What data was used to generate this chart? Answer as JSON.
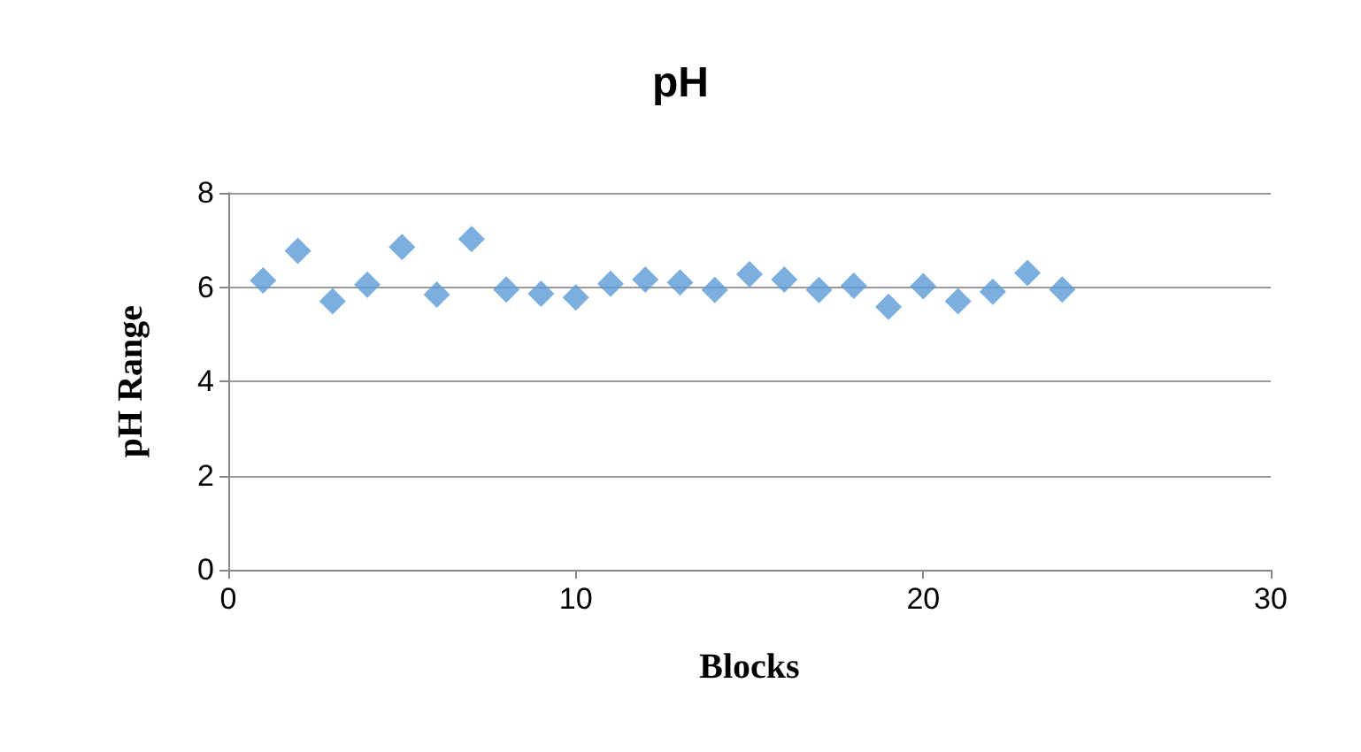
{
  "chart_data": {
    "type": "scatter",
    "title": "pH",
    "xlabel": "Blocks",
    "ylabel": "pH Range",
    "x": [
      1,
      2,
      3,
      4,
      5,
      6,
      7,
      8,
      9,
      10,
      11,
      12,
      13,
      14,
      15,
      16,
      17,
      18,
      19,
      20,
      21,
      22,
      23,
      24
    ],
    "series": [
      {
        "color": "#5b9bd5",
        "values": [
          6.14,
          6.77,
          5.7,
          6.05,
          6.85,
          5.84,
          7.02,
          5.95,
          5.86,
          5.78,
          6.07,
          6.16,
          6.1,
          5.94,
          6.27,
          6.16,
          5.94,
          6.03,
          5.58,
          6.02,
          5.7,
          5.9,
          6.3,
          5.95
        ]
      }
    ],
    "xlim": [
      0,
      30
    ],
    "xticks": [
      0,
      10,
      20,
      30
    ],
    "ylim": [
      0,
      8
    ],
    "yticks": [
      0,
      2,
      4,
      6,
      8
    ],
    "grid": "y",
    "marker": "diamond"
  }
}
